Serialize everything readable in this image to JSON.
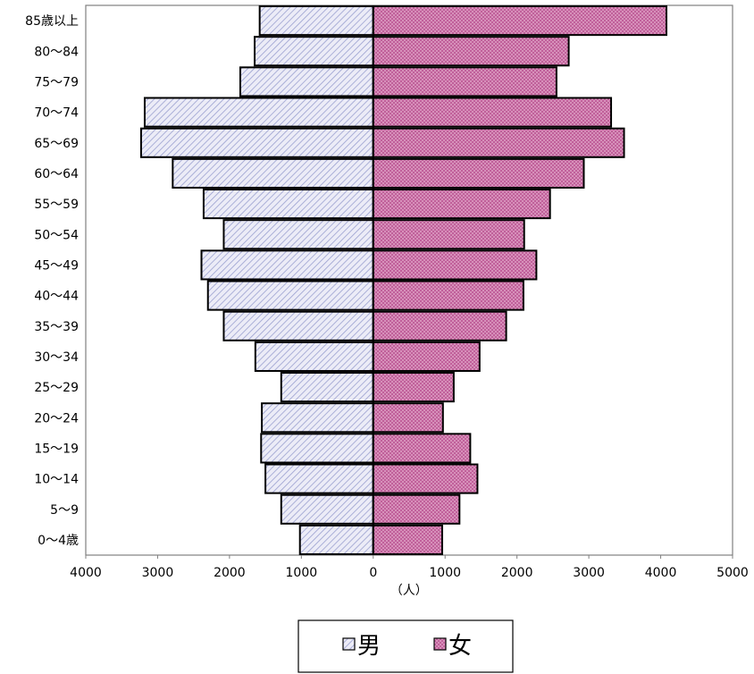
{
  "chart_data": {
    "type": "bar",
    "orientation": "horizontal",
    "subtype": "population-pyramid",
    "categories": [
      "0～4歳",
      "5～9",
      "10～14",
      "15～19",
      "20～24",
      "25～29",
      "30～34",
      "35～39",
      "40～44",
      "45～49",
      "50～54",
      "55～59",
      "60～64",
      "65～69",
      "70～74",
      "75～79",
      "80～84",
      "85歳以上"
    ],
    "series": [
      {
        "name": "男",
        "direction": "left",
        "color": "#d7d9f0",
        "hatch_color": "#a7acd6",
        "values": [
          1020,
          1280,
          1500,
          1560,
          1550,
          1280,
          1640,
          2080,
          2300,
          2390,
          2080,
          2360,
          2790,
          3230,
          3180,
          1850,
          1650,
          1580
        ]
      },
      {
        "name": "女",
        "direction": "right",
        "color": "#c0609a",
        "dot_color": "#e3a8c9",
        "values": [
          960,
          1200,
          1450,
          1350,
          970,
          1120,
          1480,
          1850,
          2090,
          2270,
          2100,
          2460,
          2930,
          3490,
          3310,
          2550,
          2720,
          4080
        ]
      }
    ],
    "xlim": [
      -4000,
      5000
    ],
    "x_ticks": [
      -4000,
      -3000,
      -2000,
      -1000,
      0,
      1000,
      2000,
      3000,
      4000,
      5000
    ],
    "x_tick_labels": [
      "4000",
      "3000",
      "2000",
      "1000",
      "0",
      "1000",
      "2000",
      "3000",
      "4000",
      "5000"
    ],
    "xlabel": "（人）",
    "title": "",
    "ylabel": "",
    "grid": false,
    "legend": {
      "position": "bottom-center",
      "entries": [
        "男",
        "女"
      ]
    }
  }
}
